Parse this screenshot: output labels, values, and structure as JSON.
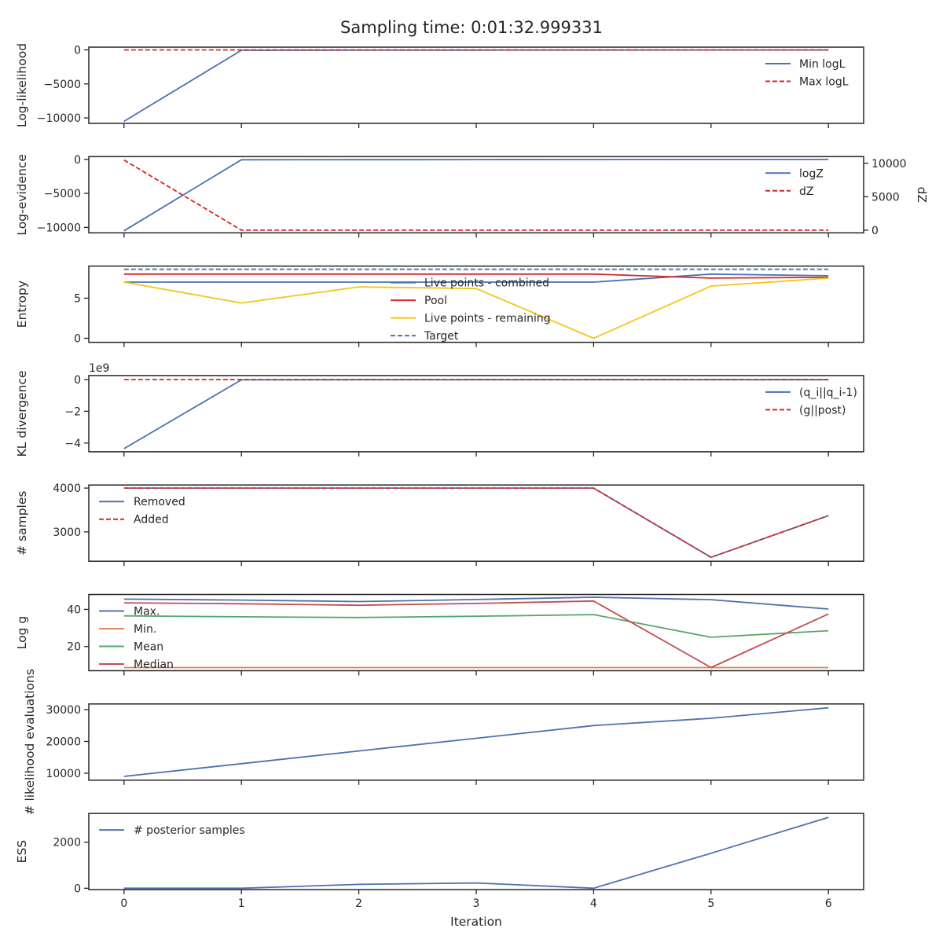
{
  "suptitle": "Sampling time: 0:01:32.999331",
  "colors": {
    "blue": "#4c72b0",
    "red": "#c44e52",
    "darkred": "#d62728",
    "orange": "#dd8452",
    "green": "#55a868",
    "gold": "#f5c518",
    "axis": "#262626"
  },
  "chart_data": [
    {
      "type": "line",
      "ylabel": "Log-likelihood",
      "x": [
        0,
        1,
        2,
        3,
        4,
        5,
        6
      ],
      "ylim": [
        -10800,
        400
      ],
      "yticks": [
        0,
        -5000,
        -10000
      ],
      "ytick_labels": [
        "0",
        "−5000",
        "−10000"
      ],
      "legend_loc": "upper-right",
      "series": [
        {
          "name": "Min logL",
          "style": "solid",
          "color": "#4c72b0",
          "values": [
            -10500,
            -60,
            -50,
            -40,
            -30,
            -20,
            -10
          ]
        },
        {
          "name": "Max logL",
          "style": "dashed",
          "color": "#d62728",
          "values": [
            0,
            0,
            0,
            0,
            0,
            0,
            0
          ]
        }
      ]
    },
    {
      "type": "line",
      "ylabel": "Log-evidence",
      "ylabel_right": "dZ",
      "x": [
        0,
        1,
        2,
        3,
        4,
        5,
        6
      ],
      "ylim": [
        -10800,
        400
      ],
      "yticks": [
        0,
        -5000,
        -10000
      ],
      "ytick_labels": [
        "0",
        "−5000",
        "−10000"
      ],
      "ylim_right": [
        -400,
        11000
      ],
      "yticks_right": [
        10000,
        5000,
        0
      ],
      "ytick_labels_right": [
        "10000",
        "5000",
        "0"
      ],
      "legend_loc": "upper-right",
      "series": [
        {
          "name": "logZ",
          "style": "solid",
          "color": "#4c72b0",
          "axis": "left",
          "values": [
            -10500,
            -60,
            -50,
            -40,
            -30,
            -20,
            -10
          ]
        },
        {
          "name": "dZ",
          "style": "dashed",
          "color": "#d62728",
          "axis": "right",
          "values": [
            10500,
            0,
            0,
            0,
            0,
            0,
            0
          ]
        }
      ]
    },
    {
      "type": "line",
      "ylabel": "Entropy",
      "x": [
        0,
        1,
        2,
        3,
        4,
        5,
        6
      ],
      "ylim": [
        -0.5,
        9.0
      ],
      "yticks": [
        5,
        0
      ],
      "ytick_labels": [
        "5",
        "0"
      ],
      "legend_loc": "center",
      "series": [
        {
          "name": "Live points - combined",
          "style": "solid",
          "color": "#4c72b0",
          "values": [
            7.0,
            7.0,
            7.0,
            7.0,
            7.0,
            8.0,
            7.8
          ]
        },
        {
          "name": "Pool",
          "style": "solid",
          "color": "#d62728",
          "values": [
            8.0,
            8.0,
            8.0,
            8.0,
            8.0,
            7.5,
            7.6
          ]
        },
        {
          "name": "Live points - remaining",
          "style": "solid",
          "color": "#f5c518",
          "values": [
            7.0,
            4.4,
            6.4,
            6.2,
            0.0,
            6.5,
            7.5
          ]
        },
        {
          "name": "Target",
          "style": "dashed",
          "color": "#4c72b0",
          "values": [
            8.6,
            8.6,
            8.6,
            8.6,
            8.6,
            8.6,
            8.6
          ]
        }
      ]
    },
    {
      "type": "line",
      "ylabel": "KL divergence",
      "offset_text": "1e9",
      "x": [
        0,
        1,
        2,
        3,
        4,
        5,
        6
      ],
      "ylim": [
        -4.55,
        0.25
      ],
      "yticks": [
        0,
        -2,
        -4
      ],
      "ytick_labels": [
        "0",
        "−2",
        "−4"
      ],
      "legend_loc": "upper-right",
      "series": [
        {
          "name": "(q_i||q_i-1)",
          "style": "solid",
          "color": "#4c72b0",
          "values": [
            -4.35,
            -0.02,
            -0.01,
            -0.01,
            -0.01,
            -0.01,
            -0.01
          ]
        },
        {
          "name": "(g||post)",
          "style": "dashed",
          "color": "#d62728",
          "values": [
            0,
            0,
            0,
            0,
            0,
            0,
            0
          ]
        }
      ]
    },
    {
      "type": "line",
      "ylabel": "# samples",
      "x": [
        0,
        1,
        2,
        3,
        4,
        5,
        6
      ],
      "ylim": [
        2330,
        4070
      ],
      "yticks": [
        4000,
        3000
      ],
      "ytick_labels": [
        "4000",
        "3000"
      ],
      "legend_loc": "upper-left",
      "series": [
        {
          "name": "Removed",
          "style": "solid",
          "color": "#4c72b0",
          "values": [
            4000,
            4000,
            4000,
            4000,
            4000,
            2420,
            3370
          ]
        },
        {
          "name": "Added",
          "style": "dashed",
          "color": "#d62728",
          "values": [
            4000,
            4000,
            4000,
            4000,
            4000,
            2420,
            3370
          ]
        }
      ]
    },
    {
      "type": "line",
      "ylabel": "Log g",
      "x": [
        0,
        1,
        2,
        3,
        4,
        5,
        6
      ],
      "ylim": [
        7,
        48
      ],
      "yticks": [
        40,
        20
      ],
      "ytick_labels": [
        "40",
        "20"
      ],
      "legend_loc": "upper-left",
      "series": [
        {
          "name": "Max.",
          "style": "solid",
          "color": "#4c72b0",
          "values": [
            45.5,
            45.0,
            44.2,
            45.3,
            46.5,
            45.2,
            40.2
          ]
        },
        {
          "name": "Min.",
          "style": "solid",
          "color": "#dd8452",
          "values": [
            8.7,
            8.7,
            8.7,
            8.7,
            8.7,
            8.7,
            8.7
          ]
        },
        {
          "name": "Mean",
          "style": "solid",
          "color": "#55a868",
          "values": [
            36.5,
            36.0,
            35.6,
            36.3,
            37.2,
            25.0,
            28.5
          ]
        },
        {
          "name": "Median",
          "style": "solid",
          "color": "#c44e52",
          "values": [
            43.5,
            43.0,
            42.2,
            43.2,
            44.5,
            8.7,
            37.5
          ]
        }
      ]
    },
    {
      "type": "line",
      "ylabel": "# likelihood evaluations",
      "x": [
        0,
        1,
        2,
        3,
        4,
        5,
        6
      ],
      "ylim": [
        7800,
        31800
      ],
      "yticks": [
        30000,
        20000,
        10000
      ],
      "ytick_labels": [
        "30000",
        "20000",
        "10000"
      ],
      "series": [
        {
          "name": "",
          "style": "solid",
          "color": "#4c72b0",
          "values": [
            9000,
            13000,
            17000,
            21000,
            25000,
            27300,
            30600
          ]
        }
      ]
    },
    {
      "type": "line",
      "ylabel": "ESS",
      "xlabel": "Iteration",
      "x": [
        0,
        1,
        2,
        3,
        4,
        5,
        6
      ],
      "xtick_labels": [
        "0",
        "1",
        "2",
        "3",
        "4",
        "5",
        "6"
      ],
      "ylim": [
        -60,
        3250
      ],
      "yticks": [
        2000,
        0
      ],
      "ytick_labels": [
        "2000",
        "0"
      ],
      "legend_loc": "upper-left",
      "series": [
        {
          "name": "# posterior samples",
          "style": "solid",
          "color": "#4c72b0",
          "values": [
            0,
            0,
            170,
            230,
            0,
            1520,
            3080
          ]
        }
      ]
    }
  ]
}
